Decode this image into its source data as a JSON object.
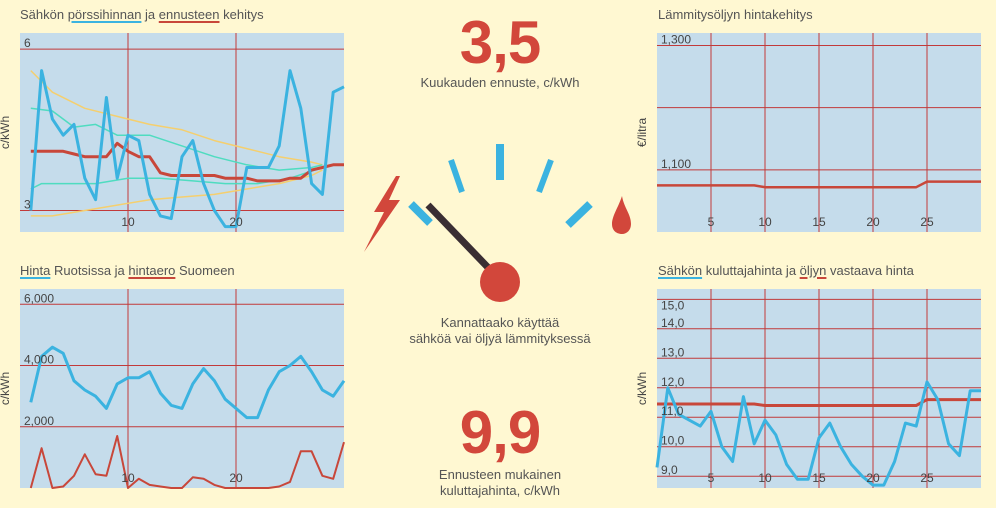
{
  "titles": {
    "tl": {
      "part1": "Sähkön ",
      "link1": "pörssihinnan",
      "part2": " ja ",
      "link2": "ennusteen",
      "part3": " kehitys"
    },
    "tr": {
      "text": "Lämmitysöljyn hintakehitys"
    },
    "bl": {
      "link1": "Hinta",
      "part1": " Ruotsissa ja ",
      "link2": "hintaero",
      "part2": " Suomeen"
    },
    "br": {
      "link1": "Sähkön",
      "part1": " kuluttajahinta ja ",
      "link2": "öljyn",
      "part2": " vastaava hinta"
    }
  },
  "center": {
    "forecast_value": "3,5",
    "forecast_label": "Kuukauden ennuste, c/kWh",
    "question_line1": "Kannattaako käyttää",
    "question_line2": "sähköä vai öljyä lämmityksessä",
    "consumer_value": "9,9",
    "consumer_label_line1": "Ennusteen mukainen",
    "consumer_label_line2": "kuluttajahinta, c/kWh",
    "gauge_needle_position": 0.1
  },
  "colors": {
    "blue": "#3bb3e0",
    "red": "#c8473a",
    "yellow": "#f5cf6e",
    "teal": "#4fdcc0",
    "panel_bg": "#c5dceb",
    "grid": "#c23a3a",
    "accent": "#d2473b",
    "needle": "#3a2e33"
  },
  "icons": {
    "left": "lightning-bolt-icon",
    "right": "flame-drop-icon"
  },
  "chart_data": [
    {
      "id": "tl",
      "type": "line",
      "ylabel": "c/kWh",
      "xlim": [
        0,
        30
      ],
      "ylim": [
        2.6,
        6.3
      ],
      "xticks": [
        10,
        20
      ],
      "xtick_labels": [
        "10",
        "20"
      ],
      "yticks": [
        3,
        6
      ],
      "ytick_labels": [
        "3",
        "6"
      ],
      "grid_x": [
        10,
        20
      ],
      "grid_y": [
        3,
        6
      ],
      "series": [
        {
          "role": "band_outer_upper",
          "color": "#f5cf6e",
          "width": 1.5,
          "x": [
            1,
            3,
            6,
            9,
            12,
            15,
            18,
            21,
            24,
            27,
            28
          ],
          "y": [
            5.6,
            5.2,
            4.9,
            4.75,
            4.6,
            4.5,
            4.3,
            4.15,
            4.0,
            3.9,
            3.85
          ]
        },
        {
          "role": "band_outer_lower",
          "color": "#f5cf6e",
          "width": 1.5,
          "x": [
            1,
            3,
            6,
            9,
            12,
            15,
            18,
            21,
            24,
            27,
            28
          ],
          "y": [
            2.9,
            2.9,
            3.0,
            3.1,
            3.2,
            3.25,
            3.3,
            3.4,
            3.5,
            3.65,
            3.75
          ]
        },
        {
          "role": "band_inner_upper",
          "color": "#4fdcc0",
          "width": 1.5,
          "x": [
            1,
            3,
            5,
            7,
            9,
            12,
            15,
            18,
            21,
            24,
            27,
            28
          ],
          "y": [
            4.9,
            4.85,
            4.55,
            4.6,
            4.4,
            4.4,
            4.2,
            4.0,
            3.85,
            3.75,
            3.8,
            3.85
          ]
        },
        {
          "role": "band_inner_lower",
          "color": "#4fdcc0",
          "width": 1.5,
          "x": [
            1,
            2,
            4,
            7,
            10,
            13,
            16,
            19,
            22,
            25,
            28
          ],
          "y": [
            3.4,
            3.5,
            3.5,
            3.5,
            3.6,
            3.6,
            3.55,
            3.5,
            3.5,
            3.6,
            3.8
          ]
        },
        {
          "role": "forecast",
          "color": "#c8473a",
          "width": 3,
          "x": [
            1,
            3,
            4,
            5,
            6,
            7,
            8,
            9,
            10,
            11,
            12,
            13,
            14,
            15,
            16,
            17,
            18,
            19,
            20,
            21,
            22,
            23,
            24,
            25,
            26,
            27,
            28,
            29,
            30
          ],
          "y": [
            4.1,
            4.1,
            4.1,
            4.05,
            4.0,
            4.0,
            4.0,
            4.25,
            4.1,
            4.0,
            4.0,
            3.7,
            3.65,
            3.65,
            3.65,
            3.65,
            3.65,
            3.6,
            3.6,
            3.6,
            3.55,
            3.55,
            3.55,
            3.6,
            3.6,
            3.75,
            3.8,
            3.85,
            3.85
          ]
        },
        {
          "role": "spot_price",
          "color": "#3bb3e0",
          "width": 3,
          "x": [
            1,
            2,
            3,
            4,
            5,
            6,
            7,
            8,
            9,
            10,
            11,
            12,
            13,
            14,
            15,
            16,
            17,
            18,
            19,
            20,
            21,
            22,
            23,
            24,
            25,
            26,
            27,
            28,
            29,
            30
          ],
          "y": [
            3.0,
            5.6,
            4.7,
            4.4,
            4.6,
            3.6,
            3.2,
            5.1,
            3.6,
            4.4,
            4.3,
            3.3,
            2.9,
            2.85,
            4.0,
            4.3,
            3.5,
            3.0,
            2.7,
            2.7,
            3.8,
            3.8,
            3.8,
            4.2,
            5.6,
            4.9,
            3.5,
            3.3,
            5.2,
            5.3
          ]
        }
      ]
    },
    {
      "id": "tr",
      "type": "line",
      "ylabel": "€/litra",
      "xlim": [
        0,
        30
      ],
      "ylim": [
        1.0,
        1.32
      ],
      "xticks": [
        5,
        10,
        15,
        20,
        25
      ],
      "xtick_labels": [
        "5",
        "10",
        "15",
        "20",
        "25"
      ],
      "yticks": [
        1.1,
        1.3
      ],
      "ytick_labels": [
        "1,100",
        "1,300"
      ],
      "grid_x": [
        5,
        10,
        15,
        20,
        25
      ],
      "grid_y": [
        1.1,
        1.2,
        1.3
      ],
      "series": [
        {
          "role": "heating_oil",
          "color": "#c8473a",
          "width": 2.5,
          "x": [
            0,
            9,
            10,
            24,
            25,
            30
          ],
          "y": [
            1.075,
            1.075,
            1.072,
            1.072,
            1.081,
            1.081
          ]
        }
      ]
    },
    {
      "id": "bl",
      "type": "line",
      "ylabel": "c/kWh",
      "xlim": [
        0,
        30
      ],
      "ylim": [
        0,
        6.5
      ],
      "xticks": [
        10,
        20
      ],
      "xtick_labels": [
        "10",
        "20"
      ],
      "yticks": [
        2,
        4,
        6
      ],
      "ytick_labels": [
        "2,000",
        "4,000",
        "6,000"
      ],
      "grid_x": [
        10,
        20
      ],
      "grid_y": [
        2,
        4,
        6
      ],
      "series": [
        {
          "role": "sweden_price",
          "color": "#3bb3e0",
          "width": 3,
          "x": [
            1,
            2,
            3,
            4,
            5,
            6,
            7,
            8,
            9,
            10,
            11,
            12,
            13,
            14,
            15,
            16,
            17,
            18,
            19,
            20,
            21,
            22,
            23,
            24,
            25,
            26,
            27,
            28,
            29,
            30
          ],
          "y": [
            2.8,
            4.3,
            4.6,
            4.4,
            3.5,
            3.2,
            3.0,
            2.6,
            3.4,
            3.6,
            3.6,
            3.8,
            3.1,
            2.7,
            2.6,
            3.4,
            3.9,
            3.5,
            2.9,
            2.6,
            2.3,
            2.3,
            3.2,
            3.8,
            4.0,
            4.3,
            3.8,
            3.2,
            3.0,
            3.5
          ]
        },
        {
          "role": "price_difference",
          "color": "#c8473a",
          "width": 2,
          "x": [
            1,
            2,
            3,
            4,
            5,
            6,
            7,
            8,
            9,
            10,
            11,
            12,
            13,
            14,
            15,
            16,
            17,
            18,
            19,
            20,
            21,
            22,
            23,
            24,
            25,
            26,
            27,
            28,
            29,
            30
          ],
          "y": [
            0.0,
            1.3,
            0.0,
            0.05,
            0.4,
            1.1,
            0.45,
            0.4,
            1.7,
            0.0,
            0.3,
            0.1,
            0.05,
            0.0,
            0.0,
            0.35,
            0.3,
            0.1,
            0.0,
            0.0,
            0.0,
            0.0,
            0.0,
            0.05,
            0.2,
            1.2,
            1.2,
            0.4,
            0.3,
            1.5
          ]
        }
      ]
    },
    {
      "id": "br",
      "type": "line",
      "ylabel": "c/kWh",
      "xlim": [
        0,
        30
      ],
      "ylim": [
        8.6,
        15.35
      ],
      "xticks": [
        5,
        10,
        15,
        20,
        25
      ],
      "xtick_labels": [
        "5",
        "10",
        "15",
        "20",
        "25"
      ],
      "yticks": [
        9,
        10,
        11,
        12,
        13,
        14,
        15
      ],
      "ytick_labels": [
        "9,0",
        "10,0",
        "11,0",
        "12,0",
        "13,0",
        "14,0",
        "15,0"
      ],
      "grid_x": [
        5,
        10,
        15,
        20,
        25
      ],
      "grid_y": [
        9,
        10,
        11,
        12,
        13,
        14,
        15
      ],
      "series": [
        {
          "role": "oil_equivalent",
          "color": "#c8473a",
          "width": 3,
          "x": [
            0,
            9,
            10,
            24,
            25,
            30
          ],
          "y": [
            11.45,
            11.45,
            11.4,
            11.4,
            11.6,
            11.6
          ]
        },
        {
          "role": "consumer_price",
          "color": "#3bb3e0",
          "width": 3,
          "x": [
            0,
            1,
            2,
            3,
            4,
            5,
            6,
            7,
            8,
            9,
            10,
            11,
            12,
            13,
            14,
            15,
            16,
            17,
            18,
            19,
            20,
            21,
            22,
            23,
            24,
            25,
            26,
            27,
            28,
            29,
            30
          ],
          "y": [
            9.3,
            12.0,
            11.1,
            10.9,
            10.7,
            11.2,
            10.0,
            9.5,
            11.7,
            10.1,
            10.9,
            10.4,
            9.4,
            8.9,
            8.9,
            10.3,
            10.8,
            10.0,
            9.4,
            9.0,
            8.7,
            8.7,
            9.5,
            10.8,
            10.7,
            12.2,
            11.6,
            10.1,
            9.7,
            11.9,
            11.9
          ]
        }
      ]
    }
  ]
}
